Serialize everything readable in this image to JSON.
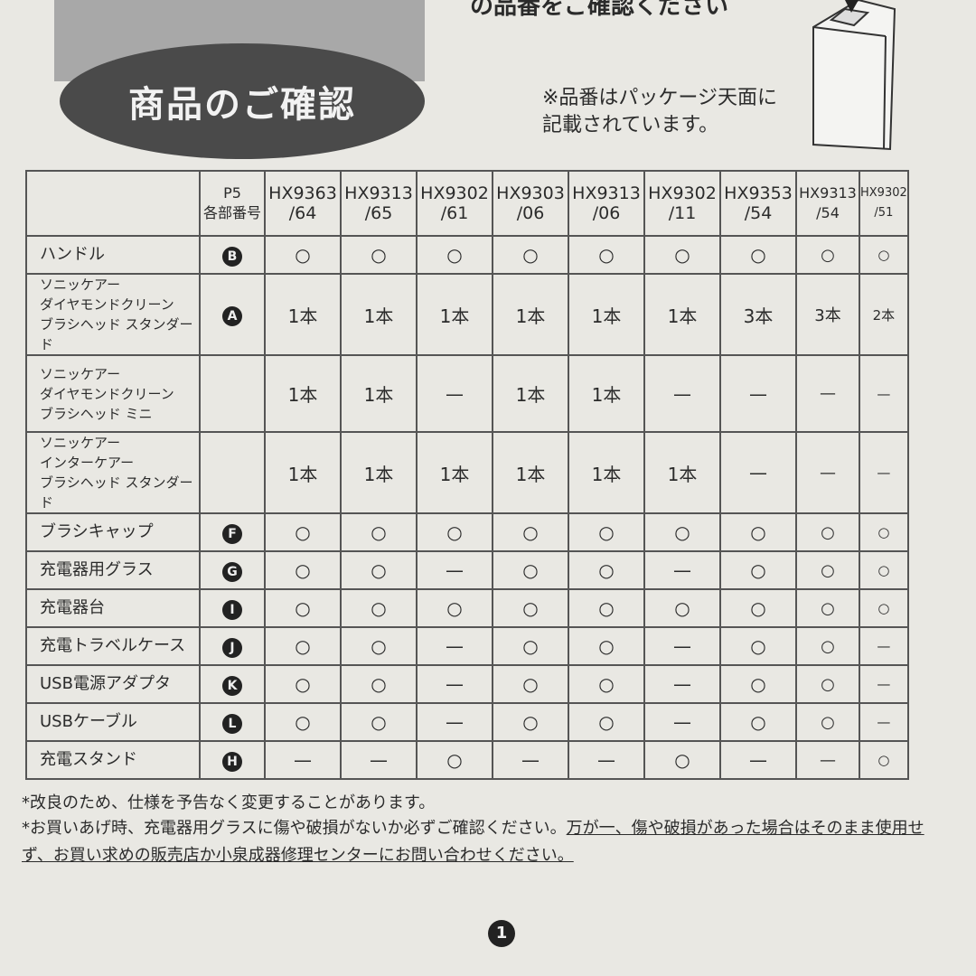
{
  "header": {
    "top_text": "の品番をご確認ください",
    "badge": "商品のご確認",
    "note_lines": [
      "※品番はパッケージ天面に",
      "記載されています。"
    ]
  },
  "table": {
    "part_header": [
      "P5",
      "各部番号"
    ],
    "columns": [
      [
        "HX9363",
        "/64"
      ],
      [
        "HX9313",
        "/65"
      ],
      [
        "HX9302",
        "/61"
      ],
      [
        "HX9303",
        "/06"
      ],
      [
        "HX9313",
        "/06"
      ],
      [
        "HX9302",
        "/11"
      ],
      [
        "HX9353",
        "/54"
      ],
      [
        "HX9313",
        "/54"
      ],
      [
        "HX9302",
        "/51"
      ]
    ],
    "rows": [
      {
        "name": [
          "ハンドル"
        ],
        "part": "B",
        "values": [
          "○",
          "○",
          "○",
          "○",
          "○",
          "○",
          "○",
          "○",
          "○"
        ]
      },
      {
        "name": [
          "ソニッケアー",
          "ダイヤモンドクリーン",
          "ブラシヘッド スタンダード"
        ],
        "part": "A",
        "values": [
          "1本",
          "1本",
          "1本",
          "1本",
          "1本",
          "1本",
          "3本",
          "3本",
          "2本"
        ]
      },
      {
        "name": [
          "ソニッケアー",
          "ダイヤモンドクリーン",
          "ブラシヘッド ミニ"
        ],
        "part": null,
        "values": [
          "1本",
          "1本",
          "—",
          "1本",
          "1本",
          "—",
          "—",
          "—",
          "—"
        ]
      },
      {
        "name": [
          "ソニッケアー",
          "インターケアー",
          "ブラシヘッド スタンダード"
        ],
        "part": null,
        "values": [
          "1本",
          "1本",
          "1本",
          "1本",
          "1本",
          "1本",
          "—",
          "—",
          "—"
        ]
      },
      {
        "name": [
          "ブラシキャップ"
        ],
        "part": "F",
        "values": [
          "○",
          "○",
          "○",
          "○",
          "○",
          "○",
          "○",
          "○",
          "○"
        ]
      },
      {
        "name": [
          "充電器用グラス"
        ],
        "part": "G",
        "values": [
          "○",
          "○",
          "—",
          "○",
          "○",
          "—",
          "○",
          "○",
          "○"
        ]
      },
      {
        "name": [
          "充電器台"
        ],
        "part": "I",
        "values": [
          "○",
          "○",
          "○",
          "○",
          "○",
          "○",
          "○",
          "○",
          "○"
        ]
      },
      {
        "name": [
          "充電トラベルケース"
        ],
        "part": "J",
        "values": [
          "○",
          "○",
          "—",
          "○",
          "○",
          "—",
          "○",
          "○",
          "—"
        ]
      },
      {
        "name": [
          "USB電源アダプタ"
        ],
        "part": "K",
        "values": [
          "○",
          "○",
          "—",
          "○",
          "○",
          "—",
          "○",
          "○",
          "—"
        ]
      },
      {
        "name": [
          "USBケーブル"
        ],
        "part": "L",
        "values": [
          "○",
          "○",
          "—",
          "○",
          "○",
          "—",
          "○",
          "○",
          "—"
        ]
      },
      {
        "name": [
          "充電スタンド"
        ],
        "part": "H",
        "values": [
          "—",
          "—",
          "○",
          "—",
          "—",
          "○",
          "—",
          "—",
          "○"
        ]
      }
    ]
  },
  "footnotes": {
    "first": "*改良のため、仕様を予告なく変更することがあります。",
    "second_plain": "*お買いあげ時、充電器用グラスに傷や破損がないか必ずご確認ください。",
    "second_underlined": "万が一、傷や破損があった場合はそのまま使用せず、お買い求めの販売店か小泉成器修理センターにお問い合わせください。"
  },
  "page_number": "1"
}
